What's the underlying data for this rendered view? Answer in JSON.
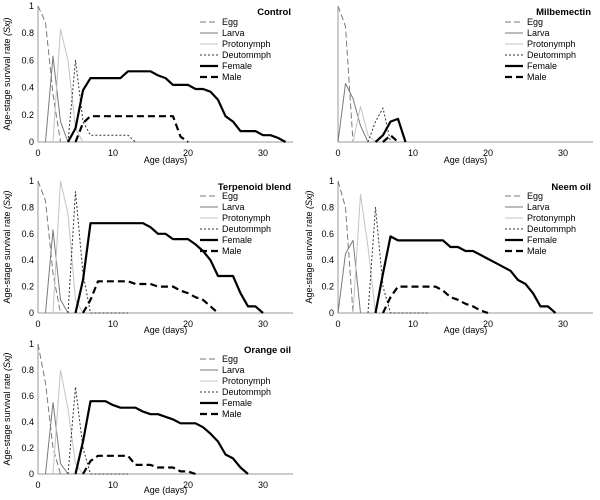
{
  "figure": {
    "legend_labels": [
      "Egg",
      "Larva",
      "Protonymph",
      "Deutommph",
      "Female",
      "Male"
    ],
    "series_styles": {
      "Egg": {
        "color": "#7a7a7a",
        "dash": "6,3"
      },
      "Larva": {
        "color": "#7a7a7a",
        "dash": ""
      },
      "Protonymph": {
        "color": "#c4c4c4",
        "dash": ""
      },
      "Deutommph": {
        "color": "#333333",
        "dash": "2,2"
      },
      "Female": {
        "color": "#000000",
        "dash": ""
      },
      "Male": {
        "color": "#000000",
        "dash": "7,4"
      }
    }
  },
  "chart_data": [
    {
      "type": "line",
      "title": "Control",
      "xlabel": "Age (days)",
      "ylabel": "Age-stage survival rate (Sxj)",
      "xlim": [
        0,
        34
      ],
      "ylim": [
        0,
        1
      ],
      "xticks": [
        0,
        10,
        20,
        30
      ],
      "yticks": [
        0,
        0.2,
        0.4,
        0.6,
        0.8,
        1
      ],
      "legend": "top-right",
      "series": [
        {
          "name": "Egg",
          "x": [
            0,
            1,
            2,
            3
          ],
          "y": [
            1,
            0.88,
            0.35,
            0
          ]
        },
        {
          "name": "Larva",
          "x": [
            1,
            2,
            3,
            4
          ],
          "y": [
            0,
            0.63,
            0.15,
            0
          ]
        },
        {
          "name": "Protonymph",
          "x": [
            2,
            3,
            4,
            5,
            6
          ],
          "y": [
            0,
            0.83,
            0.6,
            0.1,
            0
          ]
        },
        {
          "name": "Deutommph",
          "x": [
            4,
            5,
            6,
            7,
            12,
            13
          ],
          "y": [
            0,
            0.6,
            0.15,
            0.05,
            0.05,
            0
          ]
        },
        {
          "name": "Female",
          "x": [
            4,
            5,
            6,
            7,
            8,
            9,
            10,
            11,
            12,
            13,
            14,
            15,
            16,
            17,
            18,
            19,
            20,
            21,
            22,
            23,
            24,
            25,
            26,
            27,
            28,
            29,
            30,
            31,
            32,
            33
          ],
          "y": [
            0,
            0.1,
            0.38,
            0.47,
            0.47,
            0.47,
            0.47,
            0.47,
            0.52,
            0.52,
            0.52,
            0.52,
            0.49,
            0.47,
            0.42,
            0.42,
            0.42,
            0.39,
            0.39,
            0.37,
            0.31,
            0.19,
            0.15,
            0.08,
            0.08,
            0.08,
            0.05,
            0.05,
            0.03,
            0
          ]
        },
        {
          "name": "Male",
          "x": [
            5,
            6,
            7,
            8,
            9,
            10,
            11,
            12,
            13,
            14,
            15,
            16,
            17,
            18,
            19,
            20
          ],
          "y": [
            0,
            0.14,
            0.19,
            0.19,
            0.19,
            0.19,
            0.19,
            0.19,
            0.19,
            0.19,
            0.19,
            0.19,
            0.19,
            0.19,
            0.04,
            0
          ]
        }
      ]
    },
    {
      "type": "line",
      "title": "Milbemectin",
      "xlabel": "Age (days)",
      "ylabel": "",
      "xlim": [
        0,
        34
      ],
      "ylim": [
        0,
        1
      ],
      "xticks": [
        0,
        10,
        20,
        30
      ],
      "yticks": [],
      "legend": "top-right",
      "series": [
        {
          "name": "Egg",
          "x": [
            0,
            1,
            2
          ],
          "y": [
            1,
            0.85,
            0
          ]
        },
        {
          "name": "Larva",
          "x": [
            0,
            1,
            2,
            3,
            4
          ],
          "y": [
            0,
            0.43,
            0.32,
            0.12,
            0
          ]
        },
        {
          "name": "Protonymph",
          "x": [
            2,
            3,
            4,
            5
          ],
          "y": [
            0,
            0.26,
            0.05,
            0
          ]
        },
        {
          "name": "Deutommph",
          "x": [
            4,
            5,
            6,
            7
          ],
          "y": [
            0,
            0.15,
            0.25,
            0
          ]
        },
        {
          "name": "Female",
          "x": [
            5,
            6,
            7,
            8,
            9
          ],
          "y": [
            0,
            0.05,
            0.15,
            0.17,
            0
          ]
        },
        {
          "name": "Male",
          "x": [
            6,
            7,
            8
          ],
          "y": [
            0,
            0.05,
            0
          ]
        }
      ]
    },
    {
      "type": "line",
      "title": "Terpenoid blend",
      "xlabel": "Age (days)",
      "ylabel": "Age-stage survival rate (Sxj)",
      "xlim": [
        0,
        34
      ],
      "ylim": [
        0,
        1
      ],
      "xticks": [
        0,
        10,
        20,
        30
      ],
      "yticks": [
        0,
        0.2,
        0.4,
        0.6,
        0.8,
        1
      ],
      "legend": "top-right",
      "series": [
        {
          "name": "Egg",
          "x": [
            0,
            1,
            2,
            3
          ],
          "y": [
            1,
            0.85,
            0.3,
            0
          ]
        },
        {
          "name": "Larva",
          "x": [
            1,
            2,
            3,
            4
          ],
          "y": [
            0,
            0.63,
            0.1,
            0
          ]
        },
        {
          "name": "Protonymph",
          "x": [
            2,
            3,
            4,
            5,
            6
          ],
          "y": [
            0,
            1,
            0.75,
            0.1,
            0
          ]
        },
        {
          "name": "Deutommph",
          "x": [
            4,
            5,
            6,
            7,
            12
          ],
          "y": [
            0,
            0.92,
            0.3,
            0,
            0
          ]
        },
        {
          "name": "Female",
          "x": [
            5,
            6,
            7,
            8,
            9,
            10,
            11,
            12,
            13,
            14,
            15,
            16,
            17,
            18,
            19,
            20,
            21,
            22,
            23,
            24,
            25,
            26,
            27,
            28,
            29,
            30
          ],
          "y": [
            0,
            0.25,
            0.68,
            0.68,
            0.68,
            0.68,
            0.68,
            0.68,
            0.68,
            0.68,
            0.65,
            0.6,
            0.6,
            0.56,
            0.56,
            0.56,
            0.52,
            0.47,
            0.4,
            0.28,
            0.28,
            0.28,
            0.15,
            0.05,
            0.05,
            0
          ]
        },
        {
          "name": "Male",
          "x": [
            6,
            7,
            8,
            9,
            10,
            11,
            12,
            13,
            14,
            15,
            16,
            17,
            18,
            19,
            20,
            21,
            22,
            23,
            24
          ],
          "y": [
            0,
            0.1,
            0.24,
            0.24,
            0.24,
            0.24,
            0.24,
            0.22,
            0.22,
            0.22,
            0.2,
            0.2,
            0.2,
            0.17,
            0.15,
            0.12,
            0.1,
            0.05,
            0
          ]
        }
      ]
    },
    {
      "type": "line",
      "title": "Neem oil",
      "xlabel": "Age (days)",
      "ylabel": "Age-stage survival rate (Sxj)",
      "xlim": [
        0,
        34
      ],
      "ylim": [
        0,
        1
      ],
      "xticks": [
        0,
        10,
        20,
        30
      ],
      "yticks": [
        0,
        0.2,
        0.4,
        0.6,
        0.8,
        1
      ],
      "legend": "top-right",
      "series": [
        {
          "name": "Egg",
          "x": [
            0,
            1,
            2
          ],
          "y": [
            1,
            0.8,
            0
          ]
        },
        {
          "name": "Larva",
          "x": [
            0,
            1,
            2,
            3
          ],
          "y": [
            0,
            0.45,
            0.55,
            0
          ]
        },
        {
          "name": "Protonymph",
          "x": [
            2,
            3,
            4,
            5
          ],
          "y": [
            0,
            0.9,
            0.5,
            0
          ]
        },
        {
          "name": "Deutommph",
          "x": [
            4,
            5,
            6,
            7,
            12
          ],
          "y": [
            0,
            0.8,
            0.2,
            0,
            0
          ]
        },
        {
          "name": "Female",
          "x": [
            5,
            6,
            7,
            8,
            9,
            10,
            11,
            12,
            13,
            14,
            15,
            16,
            17,
            18,
            19,
            20,
            21,
            22,
            23,
            24,
            25,
            26,
            27,
            28,
            29
          ],
          "y": [
            0,
            0.3,
            0.58,
            0.55,
            0.55,
            0.55,
            0.55,
            0.55,
            0.55,
            0.55,
            0.5,
            0.5,
            0.47,
            0.47,
            0.44,
            0.41,
            0.38,
            0.35,
            0.32,
            0.25,
            0.22,
            0.15,
            0.05,
            0.05,
            0
          ]
        },
        {
          "name": "Male",
          "x": [
            6,
            7,
            8,
            9,
            10,
            11,
            12,
            13,
            14,
            15,
            16,
            17,
            18,
            19,
            20
          ],
          "y": [
            0,
            0.12,
            0.2,
            0.2,
            0.2,
            0.2,
            0.2,
            0.2,
            0.17,
            0.12,
            0.1,
            0.07,
            0.05,
            0.02,
            0
          ]
        }
      ]
    },
    {
      "type": "line",
      "title": "Orange oil",
      "xlabel": "Age (days)",
      "ylabel": "Age-stage survival rate (Sxj)",
      "xlim": [
        0,
        34
      ],
      "ylim": [
        0,
        1
      ],
      "xticks": [
        0,
        10,
        20,
        30
      ],
      "yticks": [
        0,
        0.2,
        0.4,
        0.6,
        0.8,
        1
      ],
      "legend": "top-right",
      "series": [
        {
          "name": "Egg",
          "x": [
            0,
            1,
            2,
            3
          ],
          "y": [
            1,
            0.7,
            0.2,
            0
          ]
        },
        {
          "name": "Larva",
          "x": [
            1,
            2,
            3,
            4
          ],
          "y": [
            0,
            0.55,
            0.08,
            0
          ]
        },
        {
          "name": "Protonymph",
          "x": [
            2,
            3,
            4,
            5,
            6
          ],
          "y": [
            0,
            0.8,
            0.5,
            0.08,
            0
          ]
        },
        {
          "name": "Deutommph",
          "x": [
            4,
            5,
            6,
            7,
            12
          ],
          "y": [
            0,
            0.67,
            0.2,
            0,
            0
          ]
        },
        {
          "name": "Female",
          "x": [
            5,
            6,
            7,
            8,
            9,
            10,
            11,
            12,
            13,
            14,
            15,
            16,
            17,
            18,
            19,
            20,
            21,
            22,
            23,
            24,
            25,
            26,
            27,
            28
          ],
          "y": [
            0,
            0.25,
            0.56,
            0.56,
            0.56,
            0.53,
            0.51,
            0.51,
            0.51,
            0.48,
            0.46,
            0.46,
            0.44,
            0.42,
            0.39,
            0.39,
            0.39,
            0.36,
            0.31,
            0.25,
            0.15,
            0.12,
            0.05,
            0
          ]
        },
        {
          "name": "Male",
          "x": [
            6,
            7,
            8,
            9,
            10,
            11,
            12,
            13,
            14,
            15,
            16,
            17,
            18,
            19,
            20,
            21
          ],
          "y": [
            0,
            0.1,
            0.14,
            0.14,
            0.14,
            0.14,
            0.14,
            0.07,
            0.07,
            0.07,
            0.05,
            0.05,
            0.05,
            0.02,
            0.02,
            0
          ]
        }
      ]
    }
  ]
}
